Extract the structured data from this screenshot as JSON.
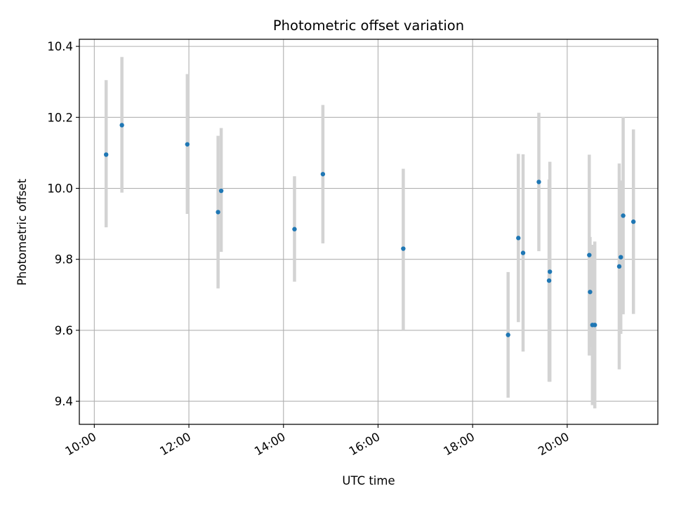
{
  "chart_data": {
    "type": "scatter",
    "title": "Photometric offset variation",
    "xlabel": "UTC time",
    "ylabel": "Photometric offset",
    "x_unit": "time of day (HH:MM)",
    "xlim": [
      "09:41",
      "21:55"
    ],
    "ylim": [
      9.335,
      10.42
    ],
    "x_ticks": [
      "10:00",
      "12:00",
      "14:00",
      "16:00",
      "18:00",
      "20:00"
    ],
    "y_ticks": [
      "9.4",
      "9.6",
      "9.8",
      "10.0",
      "10.2",
      "10.4"
    ],
    "grid": true,
    "legend": false,
    "point_color": "#1f77b4",
    "errorbar_color": "#d3d3d3",
    "series": [
      {
        "points": [
          {
            "x": "10:15",
            "y": 10.095,
            "err_low": 0.205,
            "err_high": 0.21
          },
          {
            "x": "10:35",
            "y": 10.178,
            "err_low": 0.19,
            "err_high": 0.192
          },
          {
            "x": "11:58",
            "y": 10.124,
            "err_low": 0.196,
            "err_high": 0.198
          },
          {
            "x": "12:37",
            "y": 9.933,
            "err_low": 0.215,
            "err_high": 0.215
          },
          {
            "x": "12:41",
            "y": 9.993,
            "err_low": 0.172,
            "err_high": 0.177
          },
          {
            "x": "14:14",
            "y": 9.885,
            "err_low": 0.148,
            "err_high": 0.149
          },
          {
            "x": "14:50",
            "y": 10.04,
            "err_low": 0.195,
            "err_high": 0.195
          },
          {
            "x": "16:32",
            "y": 9.83,
            "err_low": 0.23,
            "err_high": 0.225
          },
          {
            "x": "18:45",
            "y": 9.587,
            "err_low": 0.177,
            "err_high": 0.177
          },
          {
            "x": "18:58",
            "y": 9.86,
            "err_low": 0.237,
            "err_high": 0.237
          },
          {
            "x": "19:04",
            "y": 9.818,
            "err_low": 0.278,
            "err_high": 0.278
          },
          {
            "x": "19:24",
            "y": 10.018,
            "err_low": 0.195,
            "err_high": 0.195
          },
          {
            "x": "19:37",
            "y": 9.74,
            "err_low": 0.285,
            "err_high": 0.285
          },
          {
            "x": "19:38",
            "y": 9.765,
            "err_low": 0.31,
            "err_high": 0.31
          },
          {
            "x": "20:28",
            "y": 9.812,
            "err_low": 0.283,
            "err_high": 0.283
          },
          {
            "x": "20:29",
            "y": 9.708,
            "err_low": 0.155,
            "err_high": 0.155
          },
          {
            "x": "20:32",
            "y": 9.615,
            "err_low": 0.226,
            "err_high": 0.226
          },
          {
            "x": "20:35",
            "y": 9.615,
            "err_low": 0.235,
            "err_high": 0.235
          },
          {
            "x": "21:06",
            "y": 9.78,
            "err_low": 0.29,
            "err_high": 0.29
          },
          {
            "x": "21:08",
            "y": 9.806,
            "err_low": 0.216,
            "err_high": 0.216
          },
          {
            "x": "21:11",
            "y": 9.923,
            "err_low": 0.278,
            "err_high": 0.278
          },
          {
            "x": "21:24",
            "y": 9.906,
            "err_low": 0.26,
            "err_high": 0.26
          }
        ]
      }
    ]
  }
}
